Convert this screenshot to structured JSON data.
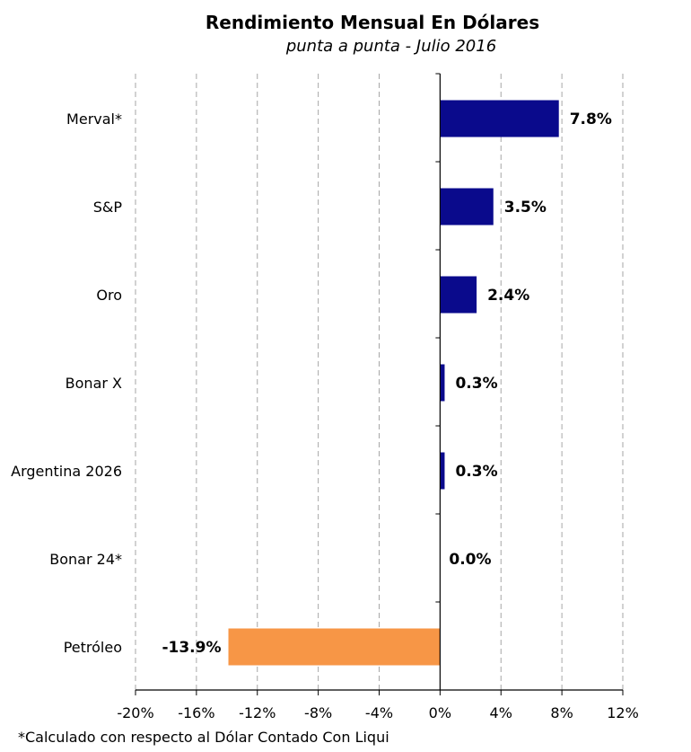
{
  "chart_data": {
    "type": "bar",
    "orientation": "horizontal",
    "title": "Rendimiento Mensual En Dólares",
    "subtitle": "punta a punta - Julio 2016",
    "categories": [
      "Merval*",
      "S&P",
      "Oro",
      "Bonar X",
      "Argentina 2026",
      "Bonar 24*",
      "Petróleo"
    ],
    "values": [
      7.8,
      3.5,
      2.4,
      0.3,
      0.3,
      0.0,
      -13.9
    ],
    "data_labels": [
      "7.8%",
      "3.5%",
      "2.4%",
      "0.3%",
      "0.3%",
      "0.0%",
      "-13.9%"
    ],
    "bar_colors": [
      "#0a0a8c",
      "#0a0a8c",
      "#0a0a8c",
      "#0a0a8c",
      "#0a0a8c",
      "#0a0a8c",
      "#f79646"
    ],
    "xlim": [
      -20,
      12
    ],
    "x_ticks": [
      -20,
      -16,
      -12,
      -8,
      -4,
      0,
      4,
      8,
      12
    ],
    "x_tick_labels": [
      "-20%",
      "-16%",
      "-12%",
      "-8%",
      "-4%",
      "0%",
      "4%",
      "8%",
      "12%"
    ],
    "grid": "vertical dashed",
    "legend": "none",
    "footnote": "*Calculado con respecto al Dólar Contado Con Liqui"
  }
}
